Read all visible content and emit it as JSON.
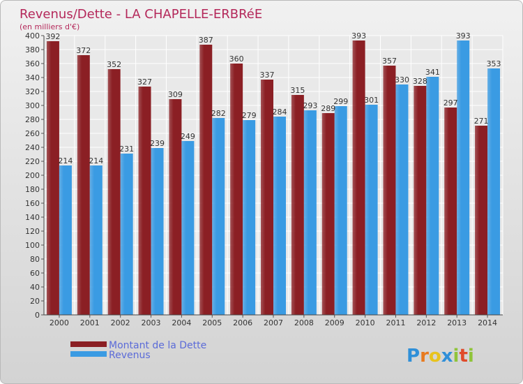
{
  "chart_data": {
    "type": "bar",
    "title": "Revenus/Dette - LA CHAPELLE-ERBRéE",
    "subtitle": "(en milliers d'€)",
    "categories": [
      "2000",
      "2001",
      "2002",
      "2003",
      "2004",
      "2005",
      "2006",
      "2007",
      "2008",
      "2009",
      "2010",
      "2011",
      "2012",
      "2013",
      "2014"
    ],
    "series": [
      {
        "name": "Montant de la Dette",
        "values": [
          392,
          372,
          352,
          327,
          309,
          387,
          360,
          337,
          315,
          289,
          393,
          357,
          328,
          297,
          271
        ],
        "color": "#8b1f24"
      },
      {
        "name": "Revenus",
        "values": [
          214,
          214,
          231,
          239,
          249,
          282,
          279,
          284,
          293,
          299,
          301,
          330,
          341,
          393,
          353
        ],
        "color": "#3a9be3"
      }
    ],
    "ylim": [
      0,
      400
    ],
    "ytick_step": 20,
    "grid": true,
    "legend_position": "bottom-left"
  },
  "logo": {
    "text": "Proxiti",
    "letter_colors": [
      "#2f8fd8",
      "#e87a1e",
      "#e8c31e",
      "#2f8fd8",
      "#8fc43a",
      "#e04a2a",
      "#8fc43a"
    ]
  }
}
